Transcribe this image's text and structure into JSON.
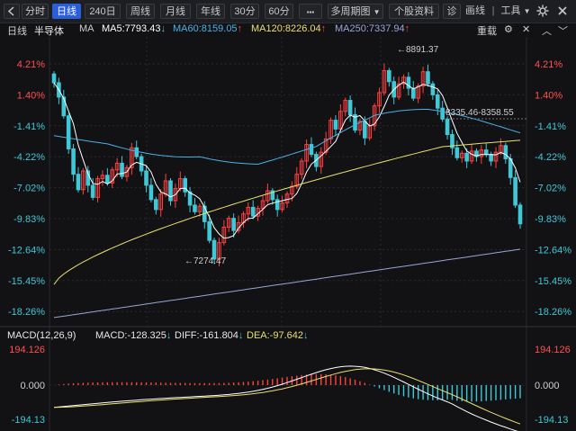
{
  "toolbar": {
    "back_icon": "chevron-left-icon",
    "buttons": [
      "分时",
      "日线",
      "240日",
      "周线",
      "月线",
      "年线",
      "30分",
      "60分"
    ],
    "active": "日线",
    "more_label": "▪▪▪",
    "multi_period_label": "多周期图",
    "stock_info_label": "个股资料",
    "diagnose_label": "诊",
    "draw_label": "画线",
    "tools_label": "工具",
    "settings_icon": "gear-icon",
    "close_icon": "close-icon"
  },
  "infobar": {
    "period": "日线",
    "name": "半导体",
    "ma_label": "MA",
    "ma5": "MA5:7793.43",
    "ma60": "MA60:8159.05",
    "ma120": "MA120:8226.04",
    "ma250": "MA250:7337.94",
    "ma5_arrow": "↓",
    "ma60_arrow": "↑",
    "ma120_arrow": "↑",
    "ma250_arrow": "↑",
    "restore_label": "重载",
    "colors": {
      "ma5": "#ffffff",
      "ma60": "#4ab0e8",
      "ma120": "#e8e070",
      "ma250": "#9aa5d8",
      "up": "#ff4040",
      "down": "#3ec8d8"
    }
  },
  "price_axis": {
    "labels": [
      "4.21%",
      "1.40%",
      "-1.41%",
      "-4.22%",
      "-7.02%",
      "-9.83%",
      "-12.64%",
      "-15.45%",
      "-18.26%"
    ]
  },
  "annotations": {
    "high": "8891.37",
    "low": "7274.47",
    "range": "8335.46-8358.55"
  },
  "macd": {
    "title": "MACD(12,26,9)",
    "macd_value": "MACD:-128.325",
    "diff_value": "DIFF:-161.804",
    "dea_value": "DEA:-97.642",
    "arrow": "↓",
    "axis_labels": [
      "194.126",
      "0.000",
      "-194.13"
    ]
  }
}
